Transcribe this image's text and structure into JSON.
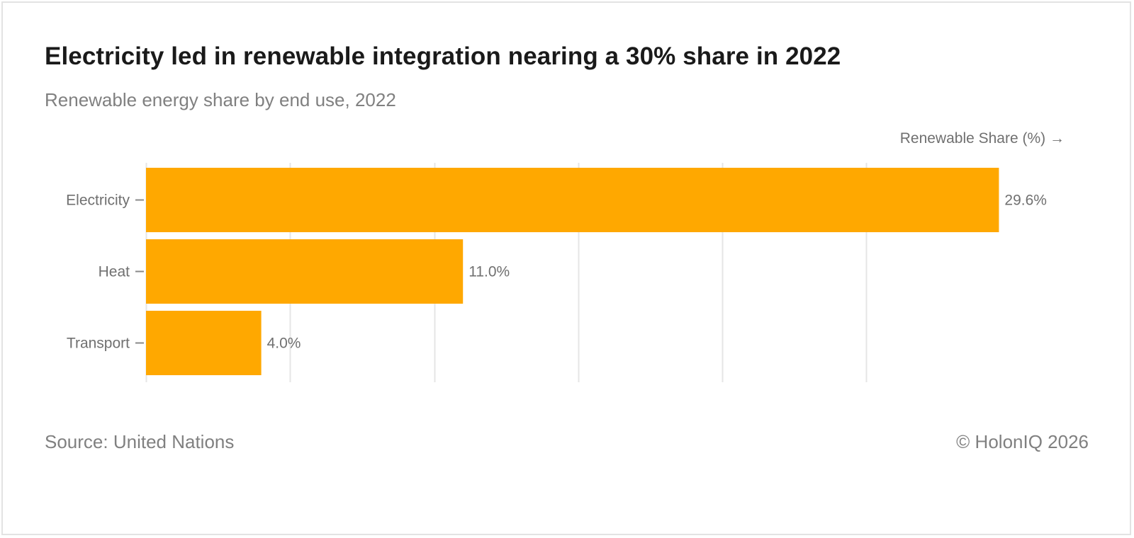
{
  "header": {
    "title": "Electricity led in renewable integration nearing a 30% share in 2022",
    "subtitle": "Renewable energy share by end use, 2022"
  },
  "footer": {
    "source": "Source: United Nations",
    "credit": "© HolonIQ 2026"
  },
  "colors": {
    "bar": "#FFA800",
    "grid": "#e6e6e6",
    "text": "#707070"
  },
  "chart_data": {
    "type": "bar",
    "orientation": "horizontal",
    "title": "Electricity led in renewable integration nearing a 30% share in 2022",
    "subtitle": "Renewable energy share by end use, 2022",
    "xlabel": "Renewable Share (%) →",
    "ylabel": "",
    "categories": [
      "Electricity",
      "Heat",
      "Transport"
    ],
    "values": [
      29.6,
      11.0,
      4.0
    ],
    "value_labels": [
      "29.6%",
      "11.0%",
      "4.0%"
    ],
    "xlim": [
      0,
      30
    ],
    "grid_ticks": [
      0,
      5,
      10,
      15,
      20,
      25
    ],
    "grid": true,
    "legend": "none"
  }
}
